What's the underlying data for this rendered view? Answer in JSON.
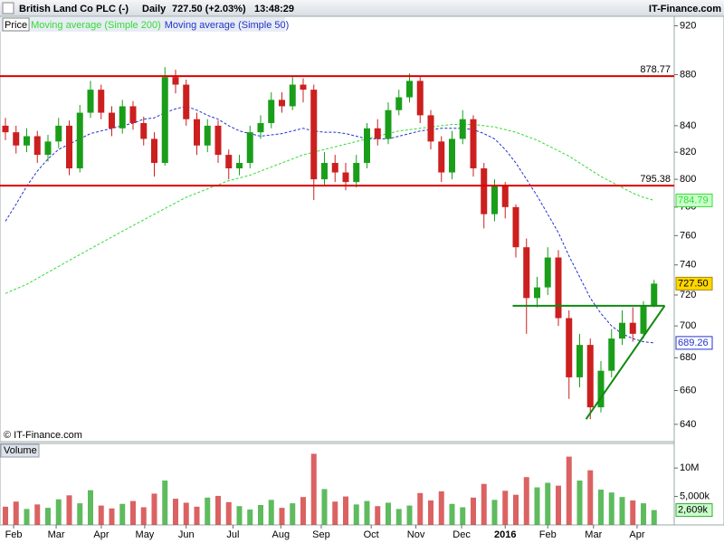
{
  "header": {
    "title": "British Land Co PLC (-)",
    "period": "Daily",
    "quote": "727.50 (+2.03%)",
    "time": "13:48:29",
    "brand": "IT-Finance.com"
  },
  "copyright": "© IT-Finance.com",
  "chart_data": [
    {
      "type": "candlestick",
      "name": "Price",
      "up_color": "#1a9e1a",
      "down_color": "#cc1f1f",
      "log": true,
      "categories": [
        null,
        null,
        null,
        null,
        null,
        null,
        null,
        null,
        null,
        null,
        null,
        null,
        null,
        null,
        null,
        null,
        null,
        null,
        null,
        null,
        null,
        null,
        null,
        null,
        null,
        null,
        null,
        null,
        null,
        null,
        null,
        null,
        null,
        null,
        null,
        null,
        null,
        null,
        null,
        null,
        null,
        null,
        null,
        null,
        null,
        null,
        null,
        null,
        null,
        null,
        null,
        null,
        null,
        null,
        null,
        null,
        null,
        null,
        null,
        null,
        null,
        null
      ],
      "open": [
        840,
        835,
        825,
        832,
        818,
        828,
        840,
        808,
        850,
        868,
        850,
        838,
        855,
        842,
        830,
        812,
        878,
        872,
        845,
        825,
        840,
        818,
        808,
        812,
        835,
        842,
        860,
        855,
        872,
        868,
        800,
        812,
        805,
        798,
        812,
        838,
        830,
        852,
        862,
        875,
        848,
        828,
        805,
        830,
        845,
        808,
        775,
        795,
        780,
        752,
        718,
        725,
        745,
        705,
        668,
        688,
        650,
        672,
        692,
        702,
        695,
        713
      ],
      "high": [
        846,
        840,
        838,
        836,
        833,
        846,
        844,
        856,
        875,
        872,
        855,
        860,
        859,
        847,
        835,
        886,
        884,
        876,
        850,
        845,
        844,
        822,
        818,
        840,
        848,
        866,
        866,
        878,
        877,
        872,
        820,
        818,
        812,
        818,
        842,
        845,
        858,
        868,
        881,
        878,
        852,
        832,
        836,
        852,
        848,
        812,
        800,
        798,
        782,
        758,
        732,
        752,
        750,
        710,
        695,
        692,
        678,
        698,
        710,
        712,
        716,
        730
      ],
      "low": [
        829,
        819,
        820,
        812,
        813,
        823,
        803,
        805,
        846,
        845,
        832,
        834,
        837,
        825,
        802,
        810,
        865,
        840,
        818,
        820,
        812,
        800,
        803,
        808,
        830,
        838,
        850,
        852,
        858,
        785,
        795,
        798,
        792,
        794,
        808,
        825,
        826,
        848,
        858,
        842,
        822,
        798,
        800,
        826,
        802,
        765,
        770,
        772,
        745,
        695,
        712,
        720,
        700,
        655,
        662,
        643,
        647,
        668,
        688,
        690,
        692,
        712
      ],
      "close": [
        835,
        825,
        832,
        818,
        828,
        840,
        808,
        850,
        868,
        850,
        838,
        855,
        842,
        830,
        812,
        878,
        872,
        845,
        825,
        840,
        818,
        808,
        812,
        835,
        842,
        860,
        855,
        872,
        868,
        800,
        812,
        805,
        798,
        812,
        838,
        830,
        852,
        862,
        875,
        848,
        828,
        805,
        830,
        845,
        808,
        775,
        795,
        780,
        752,
        718,
        725,
        745,
        705,
        668,
        688,
        650,
        672,
        692,
        702,
        695,
        713,
        727.5
      ],
      "close_labels": [
        null,
        null,
        null,
        null,
        null,
        null,
        null,
        null,
        null,
        null,
        null,
        null,
        null,
        null,
        null,
        null,
        null,
        null,
        null,
        null,
        null,
        null,
        null,
        null,
        null,
        null,
        null,
        null,
        null,
        null,
        null,
        null,
        null,
        null,
        null,
        null,
        null,
        null,
        null,
        null,
        null,
        null,
        null,
        null,
        null,
        null,
        null,
        null,
        null,
        null,
        null,
        null,
        null,
        null,
        null,
        null,
        null,
        null,
        null,
        null,
        null,
        "727.50"
      ],
      "series": [
        {
          "name": "Moving average (Simple 200)",
          "color": "#33dd33",
          "label_bg": "#ccffcc",
          "values": [
            721,
            724,
            727,
            731,
            735,
            739,
            743,
            747,
            751,
            755,
            759,
            763,
            767,
            771,
            775,
            779,
            783,
            787,
            790,
            793,
            796,
            799,
            801,
            803,
            806,
            809,
            812,
            815,
            818,
            820,
            822,
            824,
            826,
            828,
            830,
            832,
            834,
            836,
            837,
            838,
            839,
            840,
            841,
            841,
            841,
            840,
            839,
            837,
            835,
            832,
            829,
            825,
            821,
            817,
            812,
            807,
            802,
            798,
            794,
            790,
            787,
            784.79
          ]
        },
        {
          "name": "Moving average (Simple 50)",
          "color": "#2233cc",
          "label_bg": "#ffffff",
          "values": [
            770,
            782,
            795,
            806,
            815,
            822,
            826,
            830,
            834,
            836,
            838,
            840,
            842,
            845,
            846,
            850,
            853,
            855,
            852,
            848,
            845,
            840,
            836,
            834,
            832,
            833,
            834,
            836,
            838,
            836,
            835,
            835,
            834,
            832,
            830,
            830,
            830,
            832,
            834,
            836,
            837,
            838,
            838,
            838,
            837,
            834,
            830,
            822,
            812,
            800,
            788,
            775,
            762,
            746,
            732,
            718,
            708,
            700,
            695,
            692,
            690,
            689.26
          ]
        }
      ],
      "hlines": [
        {
          "value": 878.77,
          "color": "#dd0000"
        },
        {
          "value": 795.38,
          "color": "#dd0000"
        }
      ],
      "trendlines": [
        {
          "color": "#118811",
          "x": [
            47.7,
            62.0
          ],
          "y": [
            713,
            713
          ]
        },
        {
          "color": "#118811",
          "x": [
            54.6,
            62.0
          ],
          "y": [
            643,
            713
          ]
        }
      ],
      "ylim": [
        630,
        928
      ],
      "yticks": [
        640,
        660,
        680,
        700,
        720,
        740,
        760,
        780,
        800,
        820,
        840,
        880,
        920
      ],
      "xticks": [
        {
          "value": 0.77,
          "label": "Feb"
        },
        {
          "value": 4.77,
          "label": "Mar"
        },
        {
          "value": 9.02,
          "label": "Apr"
        },
        {
          "value": 13.1,
          "label": "May"
        },
        {
          "value": 17.0,
          "label": "Jun"
        },
        {
          "value": 21.4,
          "label": "Jul"
        },
        {
          "value": 25.9,
          "label": "Aug"
        },
        {
          "value": 29.7,
          "label": "Sep"
        },
        {
          "value": 34.4,
          "label": "Oct"
        },
        {
          "value": 38.6,
          "label": "Nov"
        },
        {
          "value": 42.9,
          "label": "Dec"
        },
        {
          "value": 47.0,
          "label": "2016"
        },
        {
          "value": 51.0,
          "label": "Feb"
        },
        {
          "value": 55.3,
          "label": "Mar"
        },
        {
          "value": 59.4,
          "label": "Apr"
        }
      ]
    },
    {
      "type": "bar",
      "title": "Volume",
      "values": [
        3200000,
        4100000,
        2800000,
        3600000,
        3000000,
        4500000,
        5200000,
        3800000,
        6100000,
        3400000,
        2900000,
        3700000,
        4200000,
        3100000,
        5500000,
        7800000,
        4600000,
        3900000,
        3200000,
        4800000,
        5100000,
        4000000,
        3300000,
        2700000,
        3500000,
        4400000,
        3000000,
        3800000,
        4900000,
        12500000,
        6300000,
        4100000,
        5000000,
        3600000,
        4200000,
        3300000,
        3900000,
        2800000,
        3400000,
        5600000,
        4300000,
        5900000,
        3700000,
        3100000,
        4800000,
        7200000,
        4400000,
        6000000,
        5300000,
        8400000,
        6600000,
        7400000,
        6900000,
        12000000,
        7800000,
        9600000,
        6200000,
        5700000,
        4900000,
        4300000,
        3800000,
        2609000
      ],
      "value_labels": [
        null,
        null,
        null,
        null,
        null,
        null,
        null,
        null,
        null,
        null,
        null,
        null,
        null,
        null,
        null,
        null,
        null,
        null,
        null,
        null,
        null,
        null,
        null,
        null,
        null,
        null,
        null,
        null,
        null,
        null,
        null,
        null,
        null,
        null,
        null,
        null,
        null,
        null,
        null,
        null,
        null,
        null,
        null,
        null,
        null,
        null,
        null,
        null,
        null,
        null,
        null,
        null,
        null,
        null,
        null,
        null,
        null,
        null,
        null,
        null,
        null,
        "2,609k"
      ],
      "label_bg": "#ccffcc",
      "ylim": [
        0,
        14000000
      ],
      "yticks": [
        {
          "value": 10000000,
          "label": "10M"
        },
        {
          "value": 5000000,
          "label": "5,000k"
        }
      ]
    }
  ]
}
